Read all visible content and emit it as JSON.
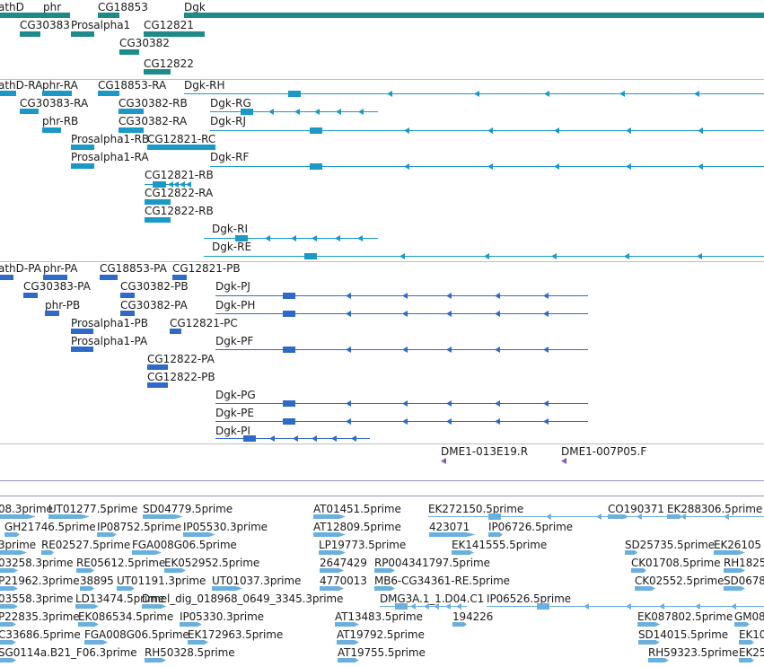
{
  "colors": {
    "gene": "#1f8a8a",
    "transcript": "#1a99c7",
    "protein": "#2f6ac8",
    "est": "#6ab0de",
    "marker": "#8a5ab8",
    "separator": "#bdbdbd",
    "divider": "#9a90c0"
  },
  "tracks": {
    "genes": {
      "features": [
        {
          "label": "athD"
        },
        {
          "label": "phr"
        },
        {
          "label": "CG18853"
        },
        {
          "label": "Dgk"
        },
        {
          "label": "CG30383"
        },
        {
          "label": "Prosalpha1"
        },
        {
          "label": "CG12821"
        },
        {
          "label": "CG30382"
        },
        {
          "label": "CG12822"
        }
      ]
    },
    "transcripts": {
      "features": [
        {
          "label": "athD-RA"
        },
        {
          "label": "phr-RA"
        },
        {
          "label": "CG18853-RA"
        },
        {
          "label": "Dgk-RH"
        },
        {
          "label": "CG30383-RA"
        },
        {
          "label": "CG30382-RB"
        },
        {
          "label": "Dgk-RG"
        },
        {
          "label": "phr-RB"
        },
        {
          "label": "CG30382-RA"
        },
        {
          "label": "Dgk-RJ"
        },
        {
          "label": "Prosalpha1-RB"
        },
        {
          "label": "CG12821-RC"
        },
        {
          "label": "Prosalpha1-RA"
        },
        {
          "label": "Dgk-RF"
        },
        {
          "label": "CG12821-RB"
        },
        {
          "label": "CG12822-RA"
        },
        {
          "label": "CG12822-RB"
        },
        {
          "label": "Dgk-RI"
        },
        {
          "label": "Dgk-RE"
        }
      ]
    },
    "proteins": {
      "features": [
        {
          "label": "athD-PA"
        },
        {
          "label": "phr-PA"
        },
        {
          "label": "CG18853-PA"
        },
        {
          "label": "CG12821-PB"
        },
        {
          "label": "CG30383-PA"
        },
        {
          "label": "CG30382-PB"
        },
        {
          "label": "Dgk-PJ"
        },
        {
          "label": "phr-PB"
        },
        {
          "label": "CG30382-PA"
        },
        {
          "label": "Dgk-PH"
        },
        {
          "label": "Prosalpha1-PB"
        },
        {
          "label": "CG12821-PC"
        },
        {
          "label": "Prosalpha1-PA"
        },
        {
          "label": "Dgk-PF"
        },
        {
          "label": "CG12822-PA"
        },
        {
          "label": "CG12822-PB"
        },
        {
          "label": "Dgk-PG"
        },
        {
          "label": "Dgk-PE"
        },
        {
          "label": "Dgk-PI"
        }
      ]
    },
    "markers": {
      "features": [
        {
          "label": "DME1-013E19.R"
        },
        {
          "label": "DME1-007P05.F"
        }
      ]
    },
    "ests": {
      "features": [
        {
          "label": "08.3prime"
        },
        {
          "label": "UT01277.5prime"
        },
        {
          "label": "SD04779.5prime"
        },
        {
          "label": "AT01451.5prime"
        },
        {
          "label": "EK272150.5prime"
        },
        {
          "label": "CO190371"
        },
        {
          "label": "EK288306.5prime"
        },
        {
          "label": "GH21746.5prime"
        },
        {
          "label": "IP08752.5prime"
        },
        {
          "label": "IP05530.3prime"
        },
        {
          "label": "AT12809.5prime"
        },
        {
          "label": "423071"
        },
        {
          "label": "IP06726.5prime"
        },
        {
          "label": "3prime"
        },
        {
          "label": "RE02527.5prime"
        },
        {
          "label": "FGA008G06.5prime"
        },
        {
          "label": "LP19773.5prime"
        },
        {
          "label": "EK141555.5prime"
        },
        {
          "label": "SD25735.5prime"
        },
        {
          "label": "EK26105"
        },
        {
          "label": "03258.3prime"
        },
        {
          "label": "RE05612.5prime"
        },
        {
          "label": "EK052952.5prime"
        },
        {
          "label": "2647429"
        },
        {
          "label": "RP004341797.5prime"
        },
        {
          "label": "CK01708.5prime"
        },
        {
          "label": "RH1825"
        },
        {
          "label": "P21962.3prime"
        },
        {
          "label": "38895"
        },
        {
          "label": "UT01191.3prime"
        },
        {
          "label": "UT01037.3prime"
        },
        {
          "label": "4770013"
        },
        {
          "label": "MB6-CG34361-RE.5prime"
        },
        {
          "label": "CK02552.5prime"
        },
        {
          "label": "SD0678"
        },
        {
          "label": "03558.3prime"
        },
        {
          "label": "LD13474.5prime"
        },
        {
          "label": "Dmel_dig_018968_0649_3345.3prime"
        },
        {
          "label": "DMG3A.1_1.D04.C1"
        },
        {
          "label": "IP06526.5prime"
        },
        {
          "label": "P22835.3prime"
        },
        {
          "label": "EK086534.5prime"
        },
        {
          "label": "IP05330.3prime"
        },
        {
          "label": "AT13483.5prime"
        },
        {
          "label": "194226"
        },
        {
          "label": "EK087802.5prime"
        },
        {
          "label": "GM08"
        },
        {
          "label": "C33686.5prime"
        },
        {
          "label": "FGA008G06.5prime"
        },
        {
          "label": "EK172963.5prime"
        },
        {
          "label": "AT19792.5prime"
        },
        {
          "label": "SD14015.5prime"
        },
        {
          "label": "EK104"
        },
        {
          "label": "SG0114a.B21_F06.3prime"
        },
        {
          "label": "RH50328.5prime"
        },
        {
          "label": "AT19755.5prime"
        },
        {
          "label": "RH59323.5prime"
        },
        {
          "label": "EK25"
        }
      ]
    }
  }
}
